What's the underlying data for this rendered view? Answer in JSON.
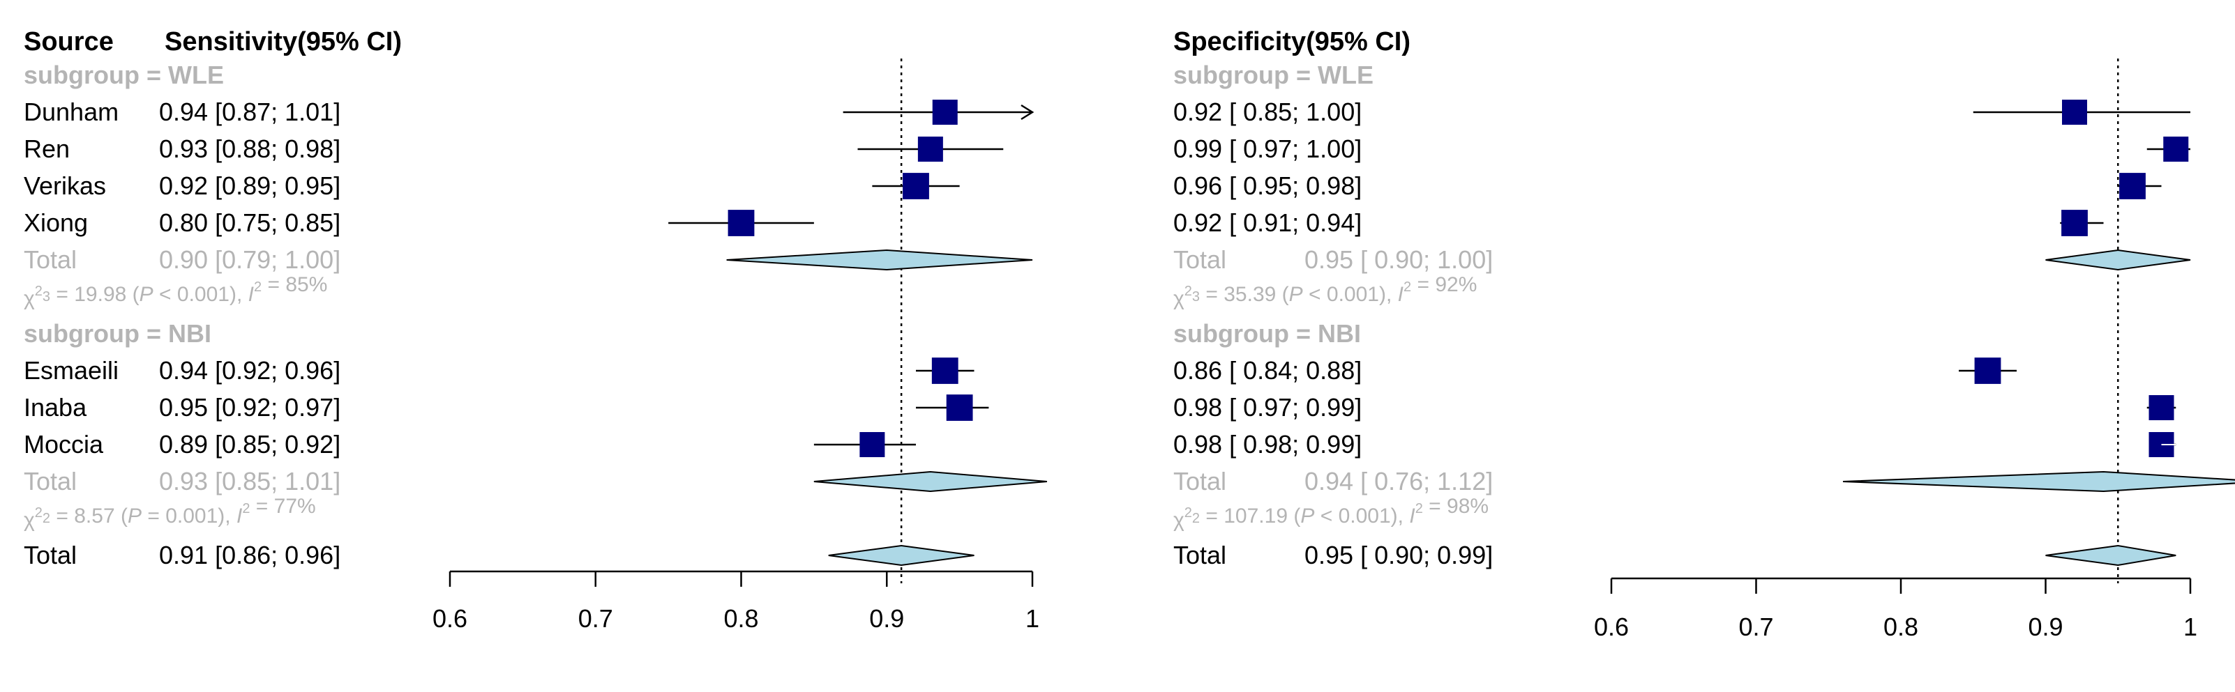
{
  "chart_data": [
    {
      "type": "forest",
      "title": "Sensitivity(95% CI)",
      "source_header": "Source",
      "xlim": [
        0.6,
        1.0
      ],
      "ticks": [
        "0.6",
        "0.7",
        "0.8",
        "0.9",
        "1"
      ],
      "reference_line": 0.91,
      "rows": [
        {
          "kind": "subgroup",
          "label": "subgroup = WLE"
        },
        {
          "kind": "study",
          "source": "Dunham",
          "est": 0.94,
          "lo": 0.87,
          "hi": 1.01,
          "weight": 1.0,
          "text": "0.94 [0.87; 1.01]"
        },
        {
          "kind": "study",
          "source": "Ren",
          "est": 0.93,
          "lo": 0.88,
          "hi": 0.98,
          "weight": 1.0,
          "text": "0.93 [0.88; 0.98]"
        },
        {
          "kind": "study",
          "source": "Verikas",
          "est": 0.92,
          "lo": 0.89,
          "hi": 0.95,
          "weight": 1.05,
          "text": "0.92 [0.89; 0.95]"
        },
        {
          "kind": "study",
          "source": "Xiong",
          "est": 0.8,
          "lo": 0.75,
          "hi": 0.85,
          "weight": 1.05,
          "text": "0.80 [0.75; 0.85]"
        },
        {
          "kind": "subtotal",
          "source": "Total",
          "est": 0.9,
          "lo": 0.79,
          "hi": 1.0,
          "text": "0.90 [0.79; 1.00]"
        },
        {
          "kind": "het",
          "text": "χ²₃ = 19.98 (P < 0.001), I² = 85%"
        },
        {
          "kind": "subgroup",
          "label": "subgroup = NBI"
        },
        {
          "kind": "study",
          "source": "Esmaeili",
          "est": 0.94,
          "lo": 0.92,
          "hi": 0.96,
          "weight": 1.05,
          "text": "0.94 [0.92; 0.96]"
        },
        {
          "kind": "study",
          "source": "Inaba",
          "est": 0.95,
          "lo": 0.92,
          "hi": 0.97,
          "weight": 1.05,
          "text": "0.95 [0.92; 0.97]"
        },
        {
          "kind": "study",
          "source": "Moccia",
          "est": 0.89,
          "lo": 0.85,
          "hi": 0.92,
          "weight": 1.0,
          "text": "0.89 [0.85; 0.92]"
        },
        {
          "kind": "subtotal",
          "source": "Total",
          "est": 0.93,
          "lo": 0.85,
          "hi": 1.01,
          "text": "0.93 [0.85; 1.01]"
        },
        {
          "kind": "het",
          "text": "χ²₂ = 8.57 (P = 0.001), I² = 77%"
        },
        {
          "kind": "overall",
          "source": "Total",
          "est": 0.91,
          "lo": 0.86,
          "hi": 0.96,
          "text": "0.91 [0.86; 0.96]"
        }
      ]
    },
    {
      "type": "forest",
      "title": "Specificity(95% CI)",
      "xlim": [
        0.6,
        1.0
      ],
      "ticks": [
        "0.6",
        "0.7",
        "0.8",
        "0.9",
        "1"
      ],
      "reference_line": 0.95,
      "rows": [
        {
          "kind": "subgroup",
          "label": "subgroup = WLE"
        },
        {
          "kind": "study",
          "est": 0.92,
          "lo": 0.85,
          "hi": 1.0,
          "weight": 1.0,
          "text": "0.92 [ 0.85; 1.00]"
        },
        {
          "kind": "study",
          "est": 0.99,
          "lo": 0.97,
          "hi": 1.0,
          "weight": 1.0,
          "text": "0.99 [ 0.97; 1.00]"
        },
        {
          "kind": "study",
          "est": 0.96,
          "lo": 0.95,
          "hi": 0.98,
          "weight": 1.05,
          "text": "0.96 [ 0.95; 0.98]"
        },
        {
          "kind": "study",
          "est": 0.92,
          "lo": 0.91,
          "hi": 0.94,
          "weight": 1.05,
          "text": "0.92 [ 0.91; 0.94]"
        },
        {
          "kind": "subtotal",
          "source": "Total",
          "est": 0.95,
          "lo": 0.9,
          "hi": 1.0,
          "text": "0.95 [ 0.90; 1.00]"
        },
        {
          "kind": "het",
          "text": "χ²₃ = 35.39 (P < 0.001), I² = 92%"
        },
        {
          "kind": "subgroup",
          "label": "subgroup = NBI"
        },
        {
          "kind": "study",
          "est": 0.86,
          "lo": 0.84,
          "hi": 0.88,
          "weight": 1.05,
          "text": "0.86 [ 0.84; 0.88]"
        },
        {
          "kind": "study",
          "est": 0.98,
          "lo": 0.97,
          "hi": 0.99,
          "weight": 1.0,
          "text": "0.98 [ 0.97; 0.99]"
        },
        {
          "kind": "study",
          "est": 0.98,
          "lo": 0.98,
          "hi": 0.99,
          "weight": 1.0,
          "text": "0.98 [ 0.98; 0.99]"
        },
        {
          "kind": "subtotal",
          "source": "Total",
          "est": 0.94,
          "lo": 0.76,
          "hi": 1.12,
          "text": "0.94 [ 0.76; 1.12]"
        },
        {
          "kind": "het",
          "text": "χ²₂ = 107.19 (P < 0.001), I² = 98%"
        },
        {
          "kind": "overall",
          "source": "Total",
          "est": 0.95,
          "lo": 0.9,
          "hi": 0.99,
          "text": "0.95 [ 0.90; 0.99]"
        }
      ]
    }
  ],
  "colors": {
    "square": "#000080",
    "diamond_fill": "#add8e6",
    "muted_text": "#b4b4b4",
    "text": "#000000"
  }
}
